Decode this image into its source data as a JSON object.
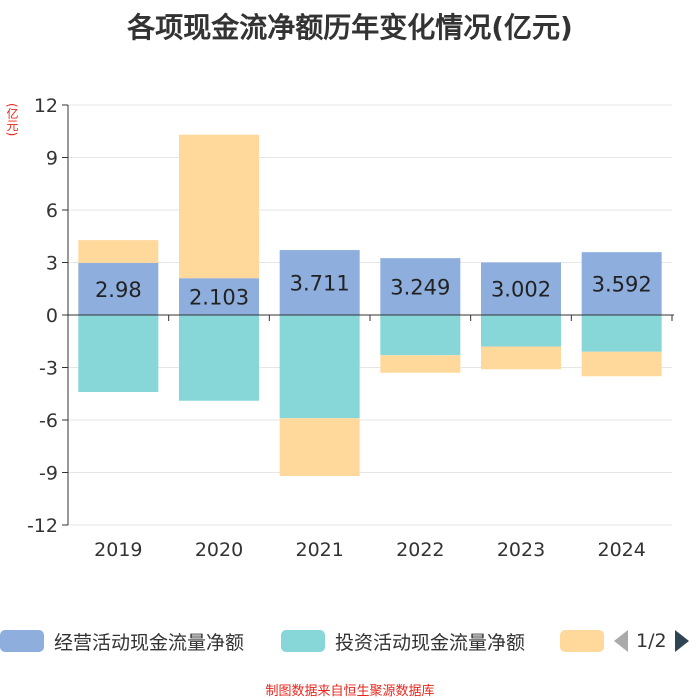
{
  "chart_data": {
    "type": "bar",
    "stacked": true,
    "title": "各项现金流净额历年变化情况(亿元)",
    "ylabel": "(亿元)",
    "ylim": [
      -12,
      12
    ],
    "yticks": [
      12,
      9,
      6,
      3,
      0,
      -3,
      -6,
      -9,
      -12
    ],
    "categories": [
      "2019",
      "2020",
      "2021",
      "2022",
      "2023",
      "2024"
    ],
    "series": [
      {
        "name": "经营活动现金流量净额",
        "color": "#8eaedd",
        "values": [
          2.98,
          2.103,
          3.711,
          3.249,
          3.002,
          3.592
        ],
        "labels": [
          "2.98",
          "2.103",
          "3.711",
          "3.249",
          "3.002",
          "3.592"
        ]
      },
      {
        "name": "投资活动现金流量净额",
        "color": "#87d6d8",
        "values": [
          -4.4,
          -4.9,
          -5.9,
          -2.3,
          -1.8,
          -2.1
        ]
      },
      {
        "name": "",
        "color": "#ffd99c",
        "values": [
          1.3,
          8.2,
          -3.3,
          -1.0,
          -1.3,
          -1.4
        ]
      }
    ],
    "legend": {
      "items": [
        "经营活动现金流量净额",
        "投资活动现金流量净额"
      ],
      "page": "1/2",
      "position": "bottom"
    },
    "source": "制图数据来自恒生聚源数据库"
  }
}
